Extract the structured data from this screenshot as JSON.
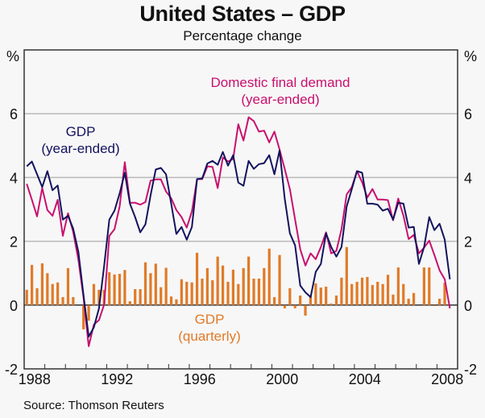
{
  "title": "United States – GDP",
  "subtitle": "Percentage change",
  "source": "Source: Thomson Reuters",
  "chart_data": {
    "type": "bar+line",
    "title": "United States – GDP",
    "subtitle": "Percentage change",
    "xlabel": "",
    "ylabel_left": "%",
    "ylabel_right": "%",
    "ylim": [
      -2,
      8
    ],
    "yticks": [
      -2,
      0,
      2,
      4,
      6
    ],
    "ytick_labels": [
      "-2",
      "0",
      "2",
      "4",
      "6"
    ],
    "xlim": [
      1988,
      2009
    ],
    "xtick_labels": [
      "1988",
      "1992",
      "1996",
      "2000",
      "2004",
      "2008"
    ],
    "x_start": "1988 Q1",
    "x_end": "2008 Q3",
    "frequency": "quarterly",
    "grid": true,
    "colors": {
      "gdp_year_ended": "#13135e",
      "domestic_final_demand": "#c8106e",
      "gdp_quarterly": "#e07a28",
      "grid": "#b9b9b9",
      "axis": "#333333"
    },
    "series": [
      {
        "name": "GDP (quarterly)",
        "type": "bar",
        "label_lines": [
          "GDP",
          "(quarterly)"
        ],
        "values": [
          0.48,
          1.26,
          0.53,
          1.31,
          1.0,
          0.66,
          0.71,
          0.25,
          1.16,
          0.25,
          0.0,
          -0.76,
          -0.49,
          0.66,
          0.48,
          0.48,
          1.03,
          0.96,
          0.98,
          1.1,
          0.12,
          0.5,
          0.5,
          1.34,
          1.0,
          1.3,
          0.56,
          1.17,
          0.27,
          0.18,
          0.81,
          0.73,
          0.71,
          1.64,
          0.83,
          1.16,
          0.78,
          1.52,
          1.24,
          0.73,
          1.11,
          0.66,
          1.16,
          1.52,
          0.83,
          0.83,
          1.16,
          1.77,
          0.25,
          1.57,
          -0.1,
          0.53,
          -0.1,
          0.3,
          -0.33,
          0.3,
          0.68,
          0.55,
          0.58,
          0.05,
          0.3,
          0.86,
          1.82,
          0.66,
          0.73,
          0.86,
          0.88,
          0.63,
          0.73,
          0.66,
          0.95,
          0.33,
          1.18,
          0.66,
          0.2,
          0.38,
          0.0,
          1.18,
          1.18,
          -0.03,
          0.2,
          0.7,
          0.0
        ]
      },
      {
        "name": "GDP (year-ended)",
        "type": "line",
        "label_lines": [
          "GDP",
          "(year-ended)"
        ],
        "values": [
          4.35,
          4.5,
          4.1,
          3.7,
          4.2,
          3.6,
          3.75,
          2.68,
          2.8,
          2.4,
          1.67,
          0.3,
          -0.99,
          -0.7,
          -0.1,
          1.24,
          2.68,
          2.96,
          3.5,
          4.15,
          3.18,
          2.76,
          2.28,
          2.53,
          3.44,
          4.25,
          4.3,
          4.1,
          3.18,
          2.23,
          2.45,
          2.05,
          2.45,
          3.95,
          3.97,
          4.44,
          4.52,
          4.4,
          4.8,
          4.37,
          4.7,
          3.84,
          3.74,
          4.52,
          4.27,
          4.42,
          4.45,
          4.7,
          4.1,
          4.85,
          3.34,
          2.25,
          1.87,
          0.61,
          0.4,
          0.25,
          1.04,
          1.29,
          2.25,
          1.82,
          1.52,
          1.82,
          3.09,
          3.64,
          4.2,
          4.15,
          3.18,
          3.18,
          3.15,
          2.96,
          3.02,
          2.68,
          3.21,
          3.18,
          2.43,
          2.45,
          1.29,
          1.82,
          2.76,
          2.35,
          2.55,
          2.05,
          0.81
        ]
      },
      {
        "name": "Domestic final demand (year-ended)",
        "type": "line",
        "label_lines": [
          "Domestic final demand",
          "(year-ended)"
        ],
        "values": [
          3.8,
          3.3,
          2.78,
          3.67,
          2.98,
          2.8,
          3.3,
          2.17,
          2.88,
          2.3,
          1.42,
          0.23,
          -1.29,
          -0.61,
          -0.47,
          0.02,
          2.17,
          2.38,
          3.09,
          4.48,
          3.21,
          3.21,
          3.15,
          3.23,
          3.9,
          3.94,
          3.94,
          3.56,
          3.35,
          2.98,
          2.76,
          2.43,
          2.94,
          3.95,
          3.95,
          4.35,
          4.33,
          3.67,
          4.63,
          4.5,
          4.58,
          5.67,
          5.16,
          5.89,
          5.77,
          5.44,
          5.47,
          5.1,
          5.44,
          4.88,
          4.27,
          3.64,
          2.68,
          1.75,
          1.24,
          1.62,
          1.44,
          1.82,
          2.28,
          1.62,
          1.7,
          2.38,
          3.47,
          3.7,
          4.2,
          3.85,
          3.37,
          3.64,
          3.31,
          3.31,
          3.29,
          2.66,
          3.34,
          2.8,
          2.07,
          2.2,
          1.62,
          1.8,
          2.02,
          1.57,
          1.09,
          0.81,
          -0.1
        ]
      }
    ],
    "annotations": [
      {
        "text": "GDP (year-ended)",
        "near": "1989–1990, upper left"
      },
      {
        "text": "Domestic final demand (year-ended)",
        "near": "1998–2002, top"
      },
      {
        "text": "GDP (quarterly)",
        "near": "1996–1998, below zero line"
      }
    ]
  }
}
